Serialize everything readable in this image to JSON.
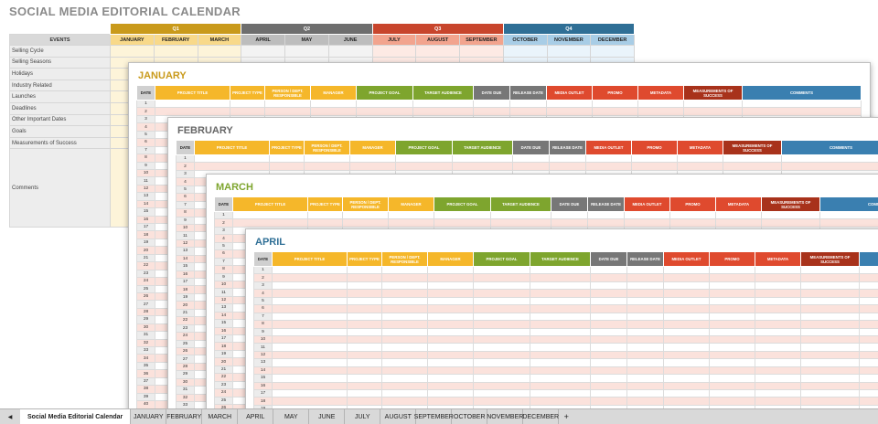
{
  "title": "SOCIAL MEDIA EDITORIAL CALENDAR",
  "quarters": [
    "Q1",
    "Q2",
    "Q3",
    "Q4"
  ],
  "months": [
    "JANUARY",
    "FEBRUARY",
    "MARCH",
    "APRIL",
    "MAY",
    "JUNE",
    "JULY",
    "AUGUST",
    "SEPTEMBER",
    "OCTOBER",
    "NOVEMBER",
    "DECEMBER"
  ],
  "events_header": "EVENTS",
  "event_rows": [
    "Selling Cycle",
    "Selling Seasons",
    "Holidays",
    "Industry Related",
    "Launches",
    "Deadlines",
    "Other Important Dates",
    "Goals",
    "Measurements of Success",
    "Comments"
  ],
  "columns": [
    "DATE",
    "PROJECT TITLE",
    "PROJECT TYPE",
    "PERSON / DEPT. RESPONSIBLE",
    "MANAGER",
    "PROJECT GOAL",
    "TARGET AUDIENCE",
    "DATE DUE",
    "RELEASE DATE",
    "MEDIA OUTLET",
    "PROMO",
    "METADATA",
    "MEASUREMENTS OF SUCCESS",
    "COMMENTS"
  ],
  "sheets": {
    "january": "JANUARY",
    "february": "FEBRUARY",
    "march": "MARCH",
    "april": "APRIL"
  },
  "colors": {
    "q1": "#c99a1b",
    "q2": "#6e6e6e",
    "q3": "#c8452c",
    "q4": "#2f6f96",
    "yellow": "#f5b72a",
    "green": "#7ea52e",
    "gray": "#777777",
    "red": "#df4a2e",
    "darkred": "#a8321b",
    "blue": "#3a7fb0",
    "pink": "#fbe2dc",
    "ltyellow": "#fdf0c6"
  },
  "tabs": {
    "main": "Social Media Editorial Calendar",
    "months": [
      "JANUARY",
      "FEBRUARY",
      "MARCH",
      "APRIL",
      "MAY",
      "JUNE",
      "JULY",
      "AUGUST",
      "SEPTEMBER",
      "OCTOBER",
      "NOVEMBER",
      "DECEMBER"
    ],
    "add": "+"
  }
}
